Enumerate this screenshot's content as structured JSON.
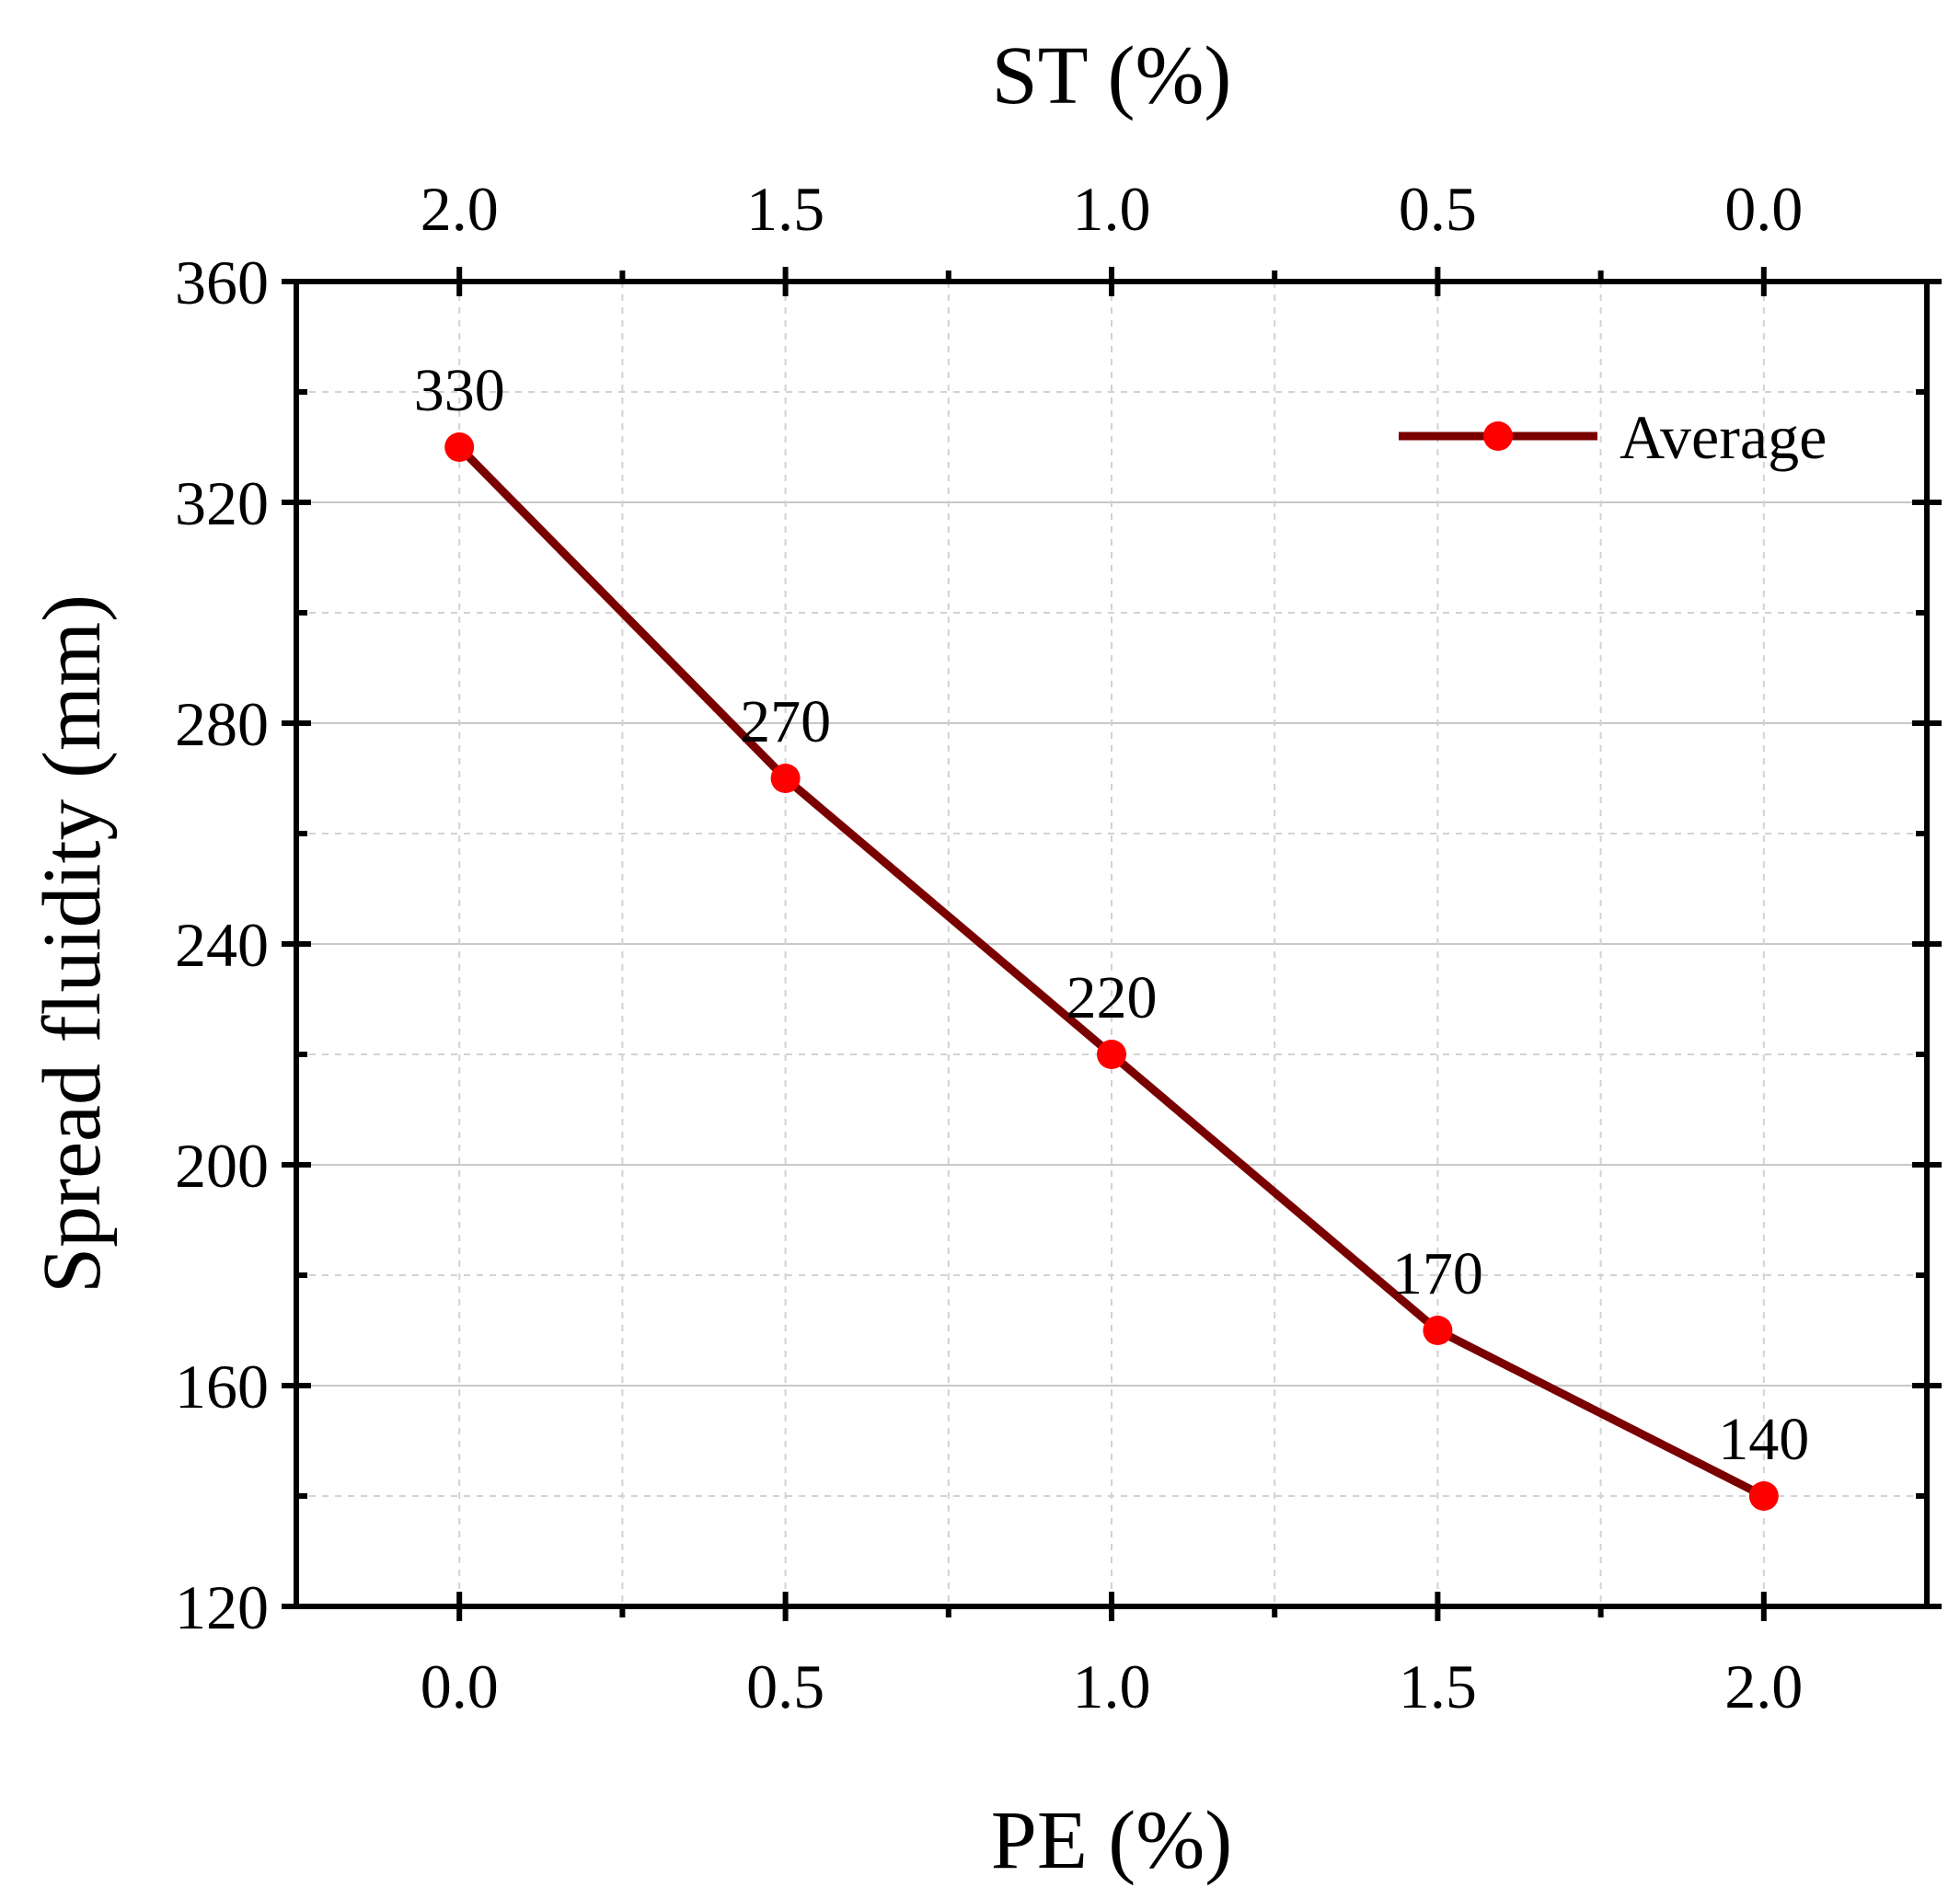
{
  "chart_data": {
    "type": "line",
    "x": [
      0.0,
      0.5,
      1.0,
      1.5,
      2.0
    ],
    "series": [
      {
        "name": "Average",
        "values": [
          330,
          270,
          220,
          170,
          140
        ],
        "data_labels": [
          "330",
          "270",
          "220",
          "170",
          "140"
        ],
        "line_color": "#7a0000",
        "marker_color": "#ff0000"
      }
    ],
    "xlabel": "PE (%)",
    "ylabel": "Spread fluidity (mm)",
    "top_xlabel": "ST (%)",
    "xlim": [
      -0.25,
      2.25
    ],
    "ylim": [
      120,
      360
    ],
    "x_ticks": [
      0.0,
      0.5,
      1.0,
      1.5,
      2.0
    ],
    "x_tick_labels": [
      "0.0",
      "0.5",
      "1.0",
      "1.5",
      "2.0"
    ],
    "top_x_tick_labels": [
      "2.0",
      "1.5",
      "1.0",
      "0.5",
      "0.0"
    ],
    "y_ticks": [
      120,
      160,
      200,
      240,
      280,
      320,
      360
    ],
    "y_tick_labels": [
      "120",
      "160",
      "200",
      "240",
      "280",
      "320",
      "360"
    ],
    "y_minor_ticks": [
      140,
      180,
      220,
      260,
      300,
      340
    ],
    "x_minor_ticks": [
      0.25,
      0.75,
      1.25,
      1.75
    ],
    "grid": true,
    "legend_position": "top-right"
  }
}
